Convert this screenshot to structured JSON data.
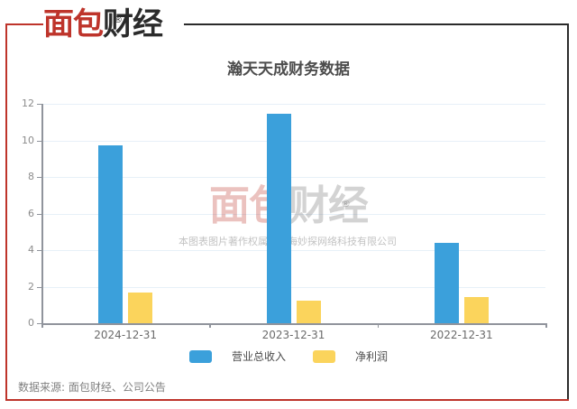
{
  "brand": {
    "red": "面包",
    "black": "财经",
    "registered": "®"
  },
  "chart_data": {
    "type": "bar",
    "title": "瀚天天成财务数据",
    "categories": [
      "2024-12-31",
      "2023-12-31",
      "2022-12-31"
    ],
    "series": [
      {
        "name": "营业总收入",
        "color": "#3BA0DB",
        "values": [
          9.74,
          11.44,
          4.41
        ]
      },
      {
        "name": "净利润",
        "color": "#FBD45C",
        "values": [
          1.66,
          1.21,
          1.42
        ]
      }
    ],
    "xlabel": "",
    "ylabel": "",
    "ylim": [
      0,
      12
    ],
    "ytick_interval": 2,
    "grid": true,
    "legend_position": "bottom"
  },
  "watermark": {
    "red": "面包",
    "gray": "财经",
    "registered": "®",
    "copyright": "本图表图片著作权属于上海妙探网络科技有限公司"
  },
  "footer": {
    "source": "数据来源: 面包财经、公司公告"
  },
  "colors": {
    "brand_red": "#BE342B",
    "brand_black": "#2B2B2B",
    "bar_blue": "#3BA0DB",
    "bar_yellow": "#FBD45C",
    "gridline": "#E7F0F8",
    "axis": "#90949C"
  }
}
